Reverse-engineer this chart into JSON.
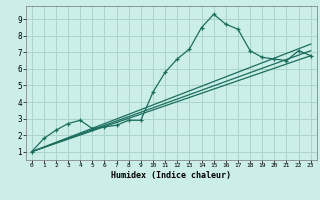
{
  "title": "",
  "xlabel": "Humidex (Indice chaleur)",
  "bg_color": "#cceee8",
  "grid_color": "#aad4cc",
  "line_color": "#1a6e5e",
  "xlim": [
    -0.5,
    23.5
  ],
  "ylim": [
    0.5,
    9.8
  ],
  "xticks": [
    0,
    1,
    2,
    3,
    4,
    5,
    6,
    7,
    8,
    9,
    10,
    11,
    12,
    13,
    14,
    15,
    16,
    17,
    18,
    19,
    20,
    21,
    22,
    23
  ],
  "yticks": [
    1,
    2,
    3,
    4,
    5,
    6,
    7,
    8,
    9
  ],
  "curve1_x": [
    0,
    1,
    2,
    3,
    4,
    5,
    6,
    7,
    8,
    9,
    10,
    11,
    12,
    13,
    14,
    15,
    16,
    17,
    18,
    19,
    20,
    21,
    22,
    23
  ],
  "curve1_y": [
    1.0,
    1.8,
    2.3,
    2.7,
    2.9,
    2.4,
    2.5,
    2.6,
    2.9,
    2.9,
    4.6,
    5.8,
    6.6,
    7.2,
    8.5,
    9.3,
    8.7,
    8.4,
    7.1,
    6.7,
    6.6,
    6.5,
    7.1,
    6.8
  ],
  "curve2_x": [
    0,
    23
  ],
  "curve2_y": [
    1.0,
    6.8
  ],
  "curve3_x": [
    0,
    23
  ],
  "curve3_y": [
    1.0,
    7.1
  ],
  "curve4_x": [
    0,
    23
  ],
  "curve4_y": [
    1.0,
    7.5
  ]
}
